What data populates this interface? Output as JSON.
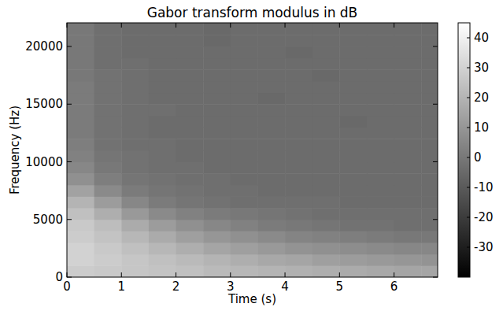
{
  "chart_data": {
    "type": "heatmap",
    "title": "Gabor transform modulus in dB",
    "x_label": "Time (s)",
    "y_label": "Frequency (Hz)",
    "xlim": [
      0,
      6.8
    ],
    "ylim": [
      0,
      22050
    ],
    "xticks": [
      0,
      1,
      2,
      3,
      4,
      5,
      6
    ],
    "yticks": [
      0,
      5000,
      10000,
      15000,
      20000
    ],
    "xbins": [
      0,
      0.5,
      1,
      1.5,
      2,
      2.5,
      3,
      3.5,
      4,
      4.5,
      5,
      5.5,
      6,
      6.5,
      6.8
    ],
    "ybins": [
      0,
      1000,
      2000,
      3000,
      4000,
      5000,
      6000,
      7000,
      8000,
      9000,
      10000,
      11000,
      12000,
      13000,
      14000,
      15000,
      16000,
      17000,
      18000,
      19000,
      20000,
      21000,
      22050
    ],
    "cells": [
      [
        28,
        27,
        26,
        25,
        24,
        22,
        21,
        20,
        19,
        18,
        17,
        16,
        15,
        15
      ],
      [
        30,
        28,
        26,
        24,
        22,
        20,
        18,
        16,
        15,
        13,
        12,
        11,
        10,
        9
      ],
      [
        30,
        27,
        24,
        21,
        18,
        15,
        13,
        11,
        9,
        8,
        7,
        6,
        5,
        5
      ],
      [
        28,
        25,
        21,
        17,
        13,
        10,
        8,
        6,
        4,
        3,
        2,
        1,
        0,
        0
      ],
      [
        27,
        23,
        17,
        12,
        8,
        5,
        3,
        1,
        0,
        -1,
        -2,
        -2,
        -3,
        -3
      ],
      [
        24,
        18,
        11,
        6,
        3,
        1,
        0,
        -1,
        -2,
        -3,
        -3,
        -3,
        -3,
        -3
      ],
      [
        20,
        12,
        5,
        1,
        -1,
        -2,
        -3,
        -3,
        -3,
        -3,
        -4,
        -4,
        -4,
        -4
      ],
      [
        14,
        6,
        1,
        -1,
        -2,
        -3,
        -3,
        -4,
        -4,
        -4,
        -4,
        -4,
        -4,
        -4
      ],
      [
        8,
        2,
        -1,
        -2,
        -3,
        -3,
        -4,
        -4,
        -4,
        -4,
        -4,
        -4,
        -4,
        -4
      ],
      [
        5,
        0,
        -2,
        -3,
        -3,
        -4,
        -4,
        -4,
        -4,
        -4,
        -4,
        -4,
        -4,
        -4
      ],
      [
        3,
        -1,
        -2,
        -3,
        -4,
        -4,
        -4,
        -4,
        -4,
        -4,
        -4,
        -4,
        -4,
        -4
      ],
      [
        2,
        -2,
        -3,
        -3,
        -4,
        -4,
        -4,
        -4,
        -4,
        -4,
        -4,
        -4,
        -4,
        -4
      ],
      [
        1,
        -2,
        -3,
        -4,
        -4,
        -4,
        -4,
        -4,
        -4,
        -4,
        -4,
        -4,
        -4,
        -4
      ],
      [
        1,
        -2,
        -3,
        -4,
        -4,
        -4,
        -4,
        -4,
        -4,
        -4,
        -5,
        -4,
        -4,
        -4
      ],
      [
        1,
        -2,
        -3,
        -3,
        -4,
        -4,
        -4,
        -4,
        -4,
        -4,
        -4,
        -4,
        -4,
        -4
      ],
      [
        1,
        -2,
        -3,
        -4,
        -4,
        -4,
        -4,
        -5,
        -4,
        -4,
        -4,
        -4,
        -4,
        -4
      ],
      [
        1,
        -2,
        -3,
        -4,
        -4,
        -4,
        -4,
        -4,
        -4,
        -4,
        -4,
        -4,
        -4,
        -4
      ],
      [
        0,
        -2,
        -3,
        -4,
        -4,
        -4,
        -4,
        -4,
        -4,
        -5,
        -4,
        -4,
        -4,
        -4
      ],
      [
        0,
        -3,
        -3,
        -4,
        -4,
        -4,
        -4,
        -4,
        -4,
        -4,
        -4,
        -4,
        -4,
        -4
      ],
      [
        0,
        -3,
        -4,
        -4,
        -4,
        -4,
        -4,
        -4,
        -5,
        -4,
        -4,
        -4,
        -4,
        -4
      ],
      [
        0,
        -3,
        -4,
        -4,
        -4,
        -5,
        -4,
        -4,
        -4,
        -4,
        -4,
        -4,
        -4,
        -4
      ],
      [
        0,
        -3,
        -4,
        -4,
        -4,
        -5,
        -4,
        -4,
        -4,
        -4,
        -4,
        -4,
        -4,
        -4
      ]
    ],
    "colorbar": {
      "range": [
        -40,
        45
      ],
      "ticks": [
        -30,
        -20,
        -10,
        0,
        10,
        20,
        30,
        40
      ]
    }
  }
}
